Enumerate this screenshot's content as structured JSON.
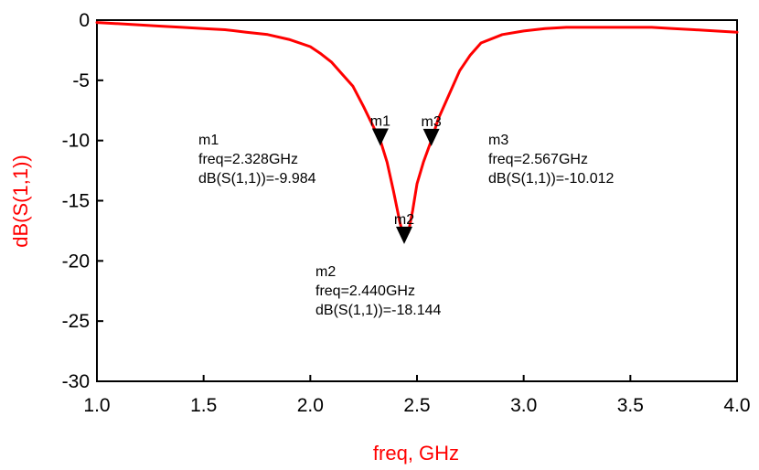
{
  "chart_data": {
    "type": "line",
    "title": "",
    "xlabel": "freq, GHz",
    "ylabel": "dB(S(1,1))",
    "xlim": [
      1.0,
      4.0
    ],
    "ylim": [
      -30,
      0
    ],
    "x_ticks": [
      "1.0",
      "1.5",
      "2.0",
      "2.5",
      "3.0",
      "3.5",
      "4.0"
    ],
    "y_ticks": [
      "0",
      "-5",
      "-10",
      "-15",
      "-20",
      "-25",
      "-30"
    ],
    "grid": false,
    "colors": {
      "series": "#ff0000",
      "axis_label": "#ff0000",
      "marker": "#000000"
    },
    "series": [
      {
        "x": [
          1.0,
          1.1,
          1.2,
          1.3,
          1.4,
          1.5,
          1.6,
          1.7,
          1.8,
          1.9,
          2.0,
          2.05,
          2.1,
          2.15,
          2.2,
          2.25,
          2.28,
          2.3,
          2.328,
          2.36,
          2.39,
          2.42,
          2.44,
          2.46,
          2.48,
          2.5,
          2.53,
          2.567,
          2.6,
          2.65,
          2.7,
          2.75,
          2.8,
          2.9,
          3.0,
          3.1,
          3.2,
          3.3,
          3.4,
          3.5,
          3.6,
          3.7,
          3.8,
          3.9,
          4.0
        ],
        "y": [
          -0.2,
          -0.3,
          -0.4,
          -0.5,
          -0.6,
          -0.7,
          -0.8,
          -1.0,
          -1.2,
          -1.6,
          -2.2,
          -2.8,
          -3.5,
          -4.5,
          -5.5,
          -7.2,
          -8.3,
          -9.0,
          -9.984,
          -11.8,
          -14.2,
          -16.8,
          -18.144,
          -17.6,
          -15.8,
          -13.6,
          -11.8,
          -10.012,
          -8.2,
          -6.2,
          -4.2,
          -2.9,
          -1.9,
          -1.2,
          -0.9,
          -0.7,
          -0.6,
          -0.6,
          -0.6,
          -0.6,
          -0.6,
          -0.7,
          -0.8,
          -0.9,
          -1.0
        ]
      }
    ],
    "markers": [
      {
        "name": "m1",
        "x": 2.328,
        "y": -9.984,
        "label": "m1",
        "readout": [
          "m1",
          "freq=2.328GHz",
          "dB(S(1,1))=-9.984"
        ]
      },
      {
        "name": "m2",
        "x": 2.44,
        "y": -18.144,
        "label": "m2",
        "readout": [
          "m2",
          "freq=2.440GHz",
          "dB(S(1,1))=-18.144"
        ]
      },
      {
        "name": "m3",
        "x": 2.567,
        "y": -10.012,
        "label": "m3",
        "readout": [
          "m3",
          "freq=2.567GHz",
          "dB(S(1,1))=-10.012"
        ]
      }
    ]
  }
}
